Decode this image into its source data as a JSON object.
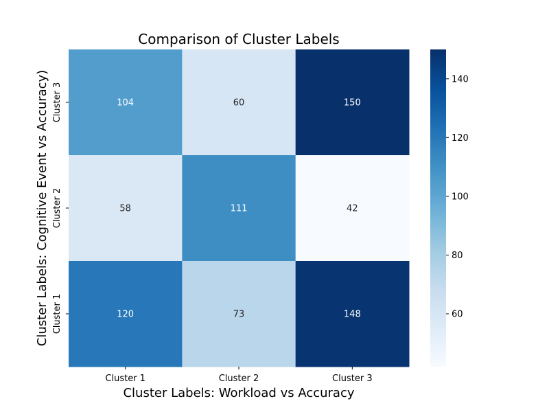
{
  "chart_data": {
    "type": "heatmap",
    "title": "Comparison of Cluster Labels",
    "xlabel": "Cluster Labels: Workload vs Accuracy",
    "ylabel": "Cluster Labels: Cognitive Event vs Accuracy)",
    "x_categories": [
      "Cluster 1",
      "Cluster 2",
      "Cluster 3"
    ],
    "y_categories_top_to_bottom": [
      "Cluster 3",
      "Cluster 2",
      "Cluster 1"
    ],
    "values_top_to_bottom": [
      [
        104,
        60,
        150
      ],
      [
        58,
        111,
        42
      ],
      [
        120,
        73,
        148
      ]
    ],
    "colormap": "Blues",
    "color_range": [
      42,
      150
    ],
    "colorbar_ticks": [
      60,
      80,
      100,
      120,
      140
    ]
  }
}
